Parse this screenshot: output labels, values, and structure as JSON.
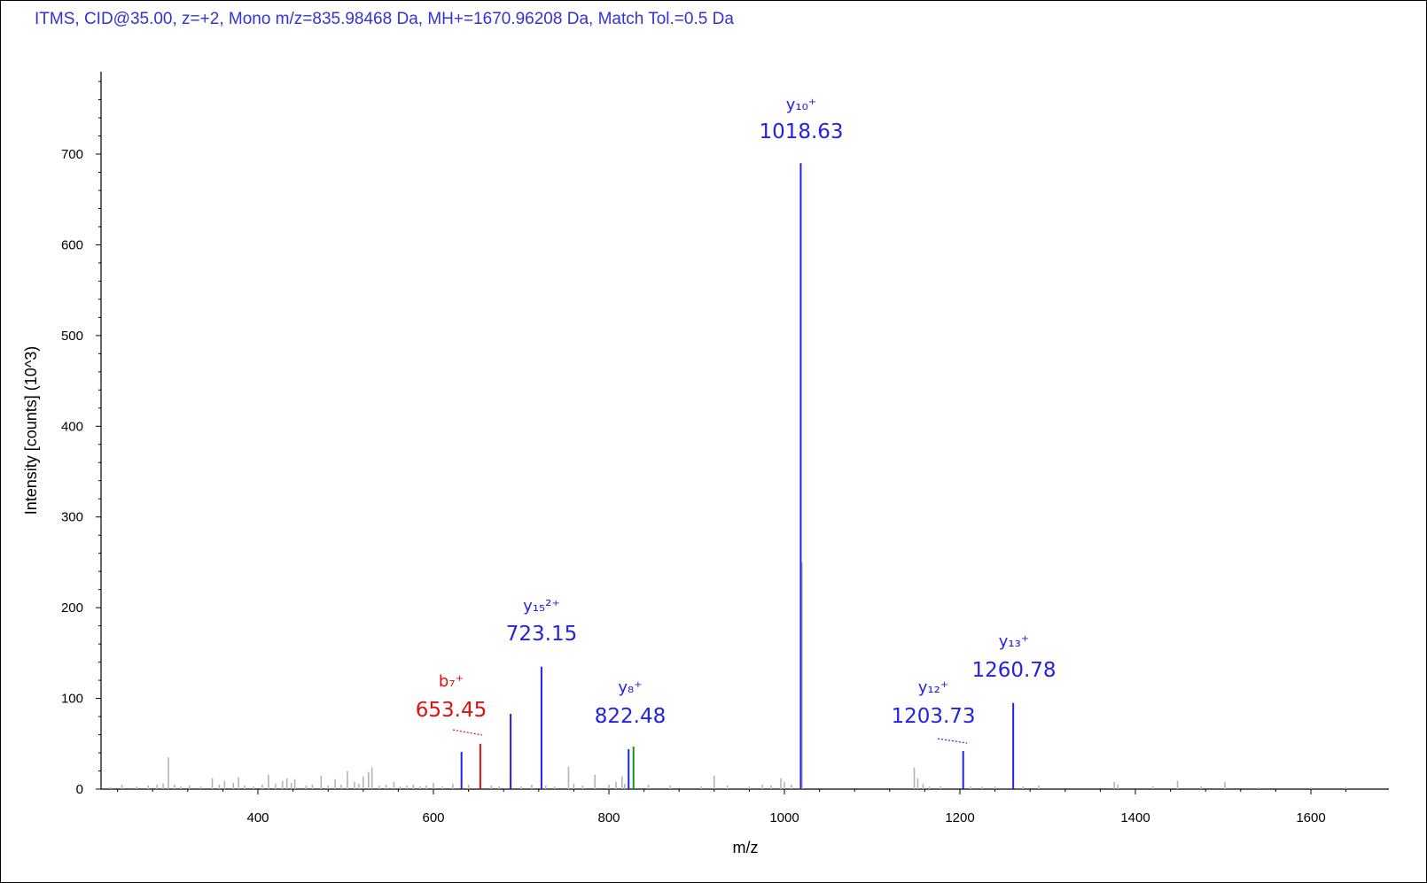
{
  "header": {
    "text": "ITMS, CID@35.00, z=+2, Mono m/z=835.98468 Da, MH+=1670.96208 Da, Match Tol.=0.5 Da"
  },
  "colors": {
    "y_ion": "#2222e6",
    "b_ion": "#dd1111",
    "other_match": "#119911",
    "unmatched": "#b4b4b4",
    "header": "#3232dc"
  },
  "chart_data": {
    "type": "bar",
    "title": "",
    "xlabel": "m/z",
    "ylabel": "Intensity [counts] (10^3)",
    "xlim": [
      220,
      1670
    ],
    "ylim": [
      0,
      800
    ],
    "xticks": [
      400,
      600,
      800,
      1000,
      1200,
      1400,
      1600
    ],
    "yticks": [
      0,
      100,
      200,
      300,
      400,
      500,
      600,
      700
    ],
    "grid": false,
    "legend": "none",
    "matched_peaks": [
      {
        "mz": 632,
        "intensity": 41,
        "ion": "y"
      },
      {
        "mz": 653.45,
        "intensity": 50,
        "ion": "b"
      },
      {
        "mz": 688,
        "intensity": 83,
        "ion": "y"
      },
      {
        "mz": 723.15,
        "intensity": 135,
        "ion": "y"
      },
      {
        "mz": 822.48,
        "intensity": 44,
        "ion": "y"
      },
      {
        "mz": 828,
        "intensity": 47,
        "ion": "other"
      },
      {
        "mz": 1018.63,
        "intensity": 690,
        "ion": "y"
      },
      {
        "mz": 1203.73,
        "intensity": 42,
        "ion": "y"
      },
      {
        "mz": 1260.78,
        "intensity": 95,
        "ion": "y"
      }
    ],
    "unmatched_peaks": [
      [
        232,
        2
      ],
      [
        245,
        5
      ],
      [
        262,
        3
      ],
      [
        275,
        4
      ],
      [
        285,
        5
      ],
      [
        292,
        6
      ],
      [
        298,
        35
      ],
      [
        305,
        5
      ],
      [
        312,
        3
      ],
      [
        322,
        4
      ],
      [
        335,
        3
      ],
      [
        348,
        12
      ],
      [
        356,
        5
      ],
      [
        362,
        9
      ],
      [
        372,
        7
      ],
      [
        378,
        13
      ],
      [
        385,
        4
      ],
      [
        395,
        3
      ],
      [
        405,
        5
      ],
      [
        412,
        16
      ],
      [
        420,
        6
      ],
      [
        428,
        9
      ],
      [
        433,
        12
      ],
      [
        438,
        7
      ],
      [
        442,
        11
      ],
      [
        455,
        4
      ],
      [
        462,
        5
      ],
      [
        472,
        15
      ],
      [
        480,
        4
      ],
      [
        488,
        11
      ],
      [
        495,
        5
      ],
      [
        502,
        20
      ],
      [
        510,
        8
      ],
      [
        515,
        6
      ],
      [
        520,
        14
      ],
      [
        526,
        19
      ],
      [
        530,
        24
      ],
      [
        538,
        4
      ],
      [
        546,
        5
      ],
      [
        555,
        8
      ],
      [
        562,
        3
      ],
      [
        570,
        4
      ],
      [
        577,
        5
      ],
      [
        585,
        3
      ],
      [
        592,
        4
      ],
      [
        600,
        7
      ],
      [
        610,
        3
      ],
      [
        622,
        6
      ],
      [
        640,
        5
      ],
      [
        666,
        4
      ],
      [
        675,
        3
      ],
      [
        700,
        3
      ],
      [
        712,
        5
      ],
      [
        728,
        4
      ],
      [
        738,
        3
      ],
      [
        754,
        25
      ],
      [
        760,
        6
      ],
      [
        770,
        4
      ],
      [
        784,
        16
      ],
      [
        800,
        5
      ],
      [
        808,
        8
      ],
      [
        815,
        14
      ],
      [
        818,
        6
      ],
      [
        845,
        5
      ],
      [
        870,
        4
      ],
      [
        905,
        3
      ],
      [
        920,
        15
      ],
      [
        935,
        4
      ],
      [
        960,
        3
      ],
      [
        975,
        5
      ],
      [
        985,
        4
      ],
      [
        996,
        12
      ],
      [
        1000,
        8
      ],
      [
        1008,
        5
      ],
      [
        1020,
        250
      ],
      [
        1148,
        24
      ],
      [
        1152,
        12
      ],
      [
        1158,
        6
      ],
      [
        1165,
        3
      ],
      [
        1178,
        3
      ],
      [
        1212,
        3
      ],
      [
        1225,
        3
      ],
      [
        1240,
        3
      ],
      [
        1272,
        3
      ],
      [
        1290,
        4
      ],
      [
        1376,
        8
      ],
      [
        1380,
        5
      ],
      [
        1420,
        3
      ],
      [
        1448,
        9
      ],
      [
        1475,
        3
      ],
      [
        1502,
        8
      ],
      [
        1540,
        2
      ],
      [
        1600,
        2
      ],
      [
        1640,
        2
      ]
    ],
    "annotations": [
      {
        "label": "y₁₀⁺",
        "value": "1018.63",
        "mz": 1018.63,
        "ion": "y"
      },
      {
        "label": "y₁₅²⁺",
        "value": "723.15",
        "mz": 723.15,
        "ion": "y"
      },
      {
        "label": "y₈⁺",
        "value": "822.48",
        "mz": 822.48,
        "ion": "y"
      },
      {
        "label": "b₇⁺",
        "value": "653.45",
        "mz": 653.45,
        "ion": "b"
      },
      {
        "label": "y₁₂⁺",
        "value": "1203.73",
        "mz": 1203.73,
        "ion": "y"
      },
      {
        "label": "y₁₃⁺",
        "value": "1260.78",
        "mz": 1260.78,
        "ion": "y"
      }
    ]
  }
}
